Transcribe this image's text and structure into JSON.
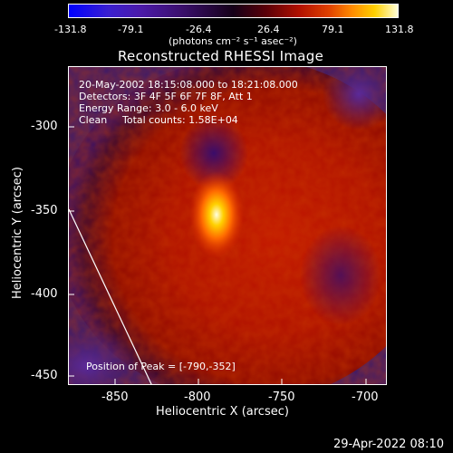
{
  "colorbar": {
    "ticks": [
      "-131.8",
      "-79.1",
      "-26.4",
      "26.4",
      "79.1",
      "131.8"
    ],
    "units": "(photons cm⁻² s⁻¹ asec⁻²)",
    "colors": [
      "#0000ff",
      "#4b1aa8",
      "#150018",
      "#b11000",
      "#ff8a00",
      "#ffffd8"
    ]
  },
  "title": "Reconstructed RHESSI Image",
  "info": {
    "time": "20-May-2002 18:15:08.000 to 18:21:08.000",
    "detectors": "Detectors: 3F 4F 5F 6F 7F 8F, Att 1",
    "energy": "Energy Range: 3.0 - 6.0 keV",
    "clean": "Clean",
    "counts": "Total counts: 1.58E+04",
    "peak": "Position of Peak = [-790,-352]"
  },
  "axes": {
    "xlabel": "Heliocentric X (arcsec)",
    "ylabel": "Heliocentric Y (arcsec)",
    "xticks": [
      "-850",
      "-800",
      "-750",
      "-700"
    ],
    "yticks": [
      "-300",
      "-350",
      "-400",
      "-450"
    ]
  },
  "timestamp": "29-Apr-2022 08:10"
}
